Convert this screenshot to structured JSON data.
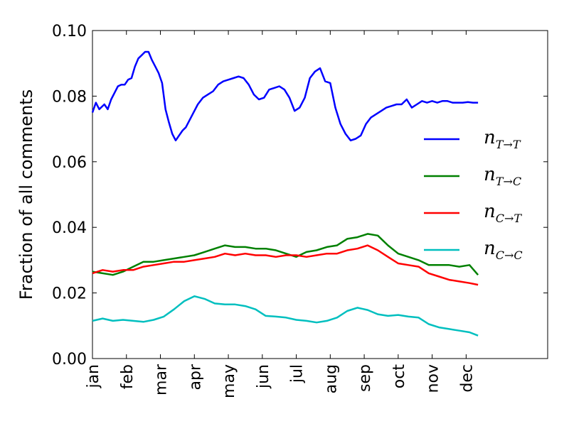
{
  "chart_data": {
    "type": "line",
    "ylabel": "Fraction of all comments",
    "xlabel": "",
    "x_ticks": [
      "jan",
      "feb",
      "mar",
      "apr",
      "may",
      "jun",
      "jul",
      "aug",
      "sep",
      "oct",
      "nov",
      "dec"
    ],
    "xlim": [
      0,
      13.4
    ],
    "ylim": [
      0.0,
      0.1
    ],
    "y_ticks": [
      "0.00",
      "0.02",
      "0.04",
      "0.06",
      "0.08",
      "0.10"
    ],
    "y_tick_values": [
      0.0,
      0.02,
      0.04,
      0.06,
      0.08,
      0.1
    ],
    "grid": false,
    "legend_position": "right",
    "series": [
      {
        "name": "n_{T→T}",
        "label_main": "n",
        "label_sub": "T→T",
        "color": "#0000ff",
        "x": [
          0,
          0.1,
          0.2,
          0.25,
          0.35,
          0.45,
          0.55,
          0.65,
          0.75,
          0.85,
          0.95,
          1.05,
          1.15,
          1.25,
          1.35,
          1.45,
          1.55,
          1.65,
          1.75,
          1.85,
          1.95,
          2.05,
          2.15,
          2.25,
          2.35,
          2.45,
          2.55,
          2.65,
          2.75,
          2.85,
          2.95,
          3.1,
          3.25,
          3.4,
          3.55,
          3.7,
          3.85,
          4.0,
          4.15,
          4.3,
          4.45,
          4.6,
          4.75,
          4.9,
          5.05,
          5.2,
          5.35,
          5.5,
          5.65,
          5.8,
          5.95,
          6.1,
          6.25,
          6.4,
          6.55,
          6.7,
          6.85,
          7.0,
          7.15,
          7.3,
          7.45,
          7.6,
          7.75,
          7.9,
          8.05,
          8.2,
          8.35,
          8.5,
          8.65,
          8.8,
          8.95,
          9.1,
          9.25,
          9.4,
          9.55,
          9.7,
          9.85,
          10.0,
          10.15,
          10.3,
          10.45,
          10.6,
          10.75,
          10.9,
          11.05,
          11.2,
          11.35
        ],
        "y": [
          0.075,
          0.078,
          0.076,
          0.0765,
          0.0775,
          0.076,
          0.079,
          0.081,
          0.083,
          0.0835,
          0.0835,
          0.085,
          0.0855,
          0.089,
          0.0915,
          0.0925,
          0.0935,
          0.0935,
          0.091,
          0.089,
          0.087,
          0.084,
          0.076,
          0.072,
          0.0685,
          0.0665,
          0.068,
          0.0695,
          0.0705,
          0.0725,
          0.0745,
          0.0775,
          0.0795,
          0.0805,
          0.0815,
          0.0835,
          0.0845,
          0.085,
          0.0855,
          0.086,
          0.0855,
          0.0835,
          0.0805,
          0.079,
          0.0795,
          0.082,
          0.0825,
          0.083,
          0.082,
          0.0795,
          0.0755,
          0.0765,
          0.0795,
          0.0855,
          0.0875,
          0.0885,
          0.0845,
          0.084,
          0.0765,
          0.0715,
          0.0685,
          0.0665,
          0.067,
          0.068,
          0.0715,
          0.0735,
          0.0745,
          0.0755,
          0.0765,
          0.077,
          0.0775,
          0.0775,
          0.079,
          0.0765,
          0.0775,
          0.0785,
          0.078,
          0.0785,
          0.078,
          0.0785,
          0.0785,
          0.078,
          0.078,
          0.078,
          0.0782,
          0.078,
          0.078
        ]
      },
      {
        "name": "n_{T→C}",
        "label_main": "n",
        "label_sub": "T→C",
        "color": "#008000",
        "x": [
          0,
          0.3,
          0.6,
          0.9,
          1.2,
          1.5,
          1.8,
          2.1,
          2.4,
          2.7,
          3.0,
          3.3,
          3.6,
          3.9,
          4.2,
          4.5,
          4.8,
          5.1,
          5.4,
          5.7,
          6.0,
          6.3,
          6.6,
          6.9,
          7.2,
          7.5,
          7.8,
          8.1,
          8.4,
          8.7,
          9.0,
          9.3,
          9.6,
          9.9,
          10.2,
          10.5,
          10.8,
          11.1,
          11.35
        ],
        "y": [
          0.0265,
          0.026,
          0.0255,
          0.0265,
          0.028,
          0.0295,
          0.0295,
          0.03,
          0.0305,
          0.031,
          0.0315,
          0.0325,
          0.0335,
          0.0345,
          0.034,
          0.034,
          0.0335,
          0.0335,
          0.033,
          0.032,
          0.031,
          0.0325,
          0.033,
          0.034,
          0.0345,
          0.0365,
          0.037,
          0.038,
          0.0375,
          0.0345,
          0.032,
          0.031,
          0.03,
          0.0285,
          0.0285,
          0.0285,
          0.028,
          0.0285,
          0.0255
        ]
      },
      {
        "name": "n_{C→T}",
        "label_main": "n",
        "label_sub": "C→T",
        "color": "#ff0000",
        "x": [
          0,
          0.3,
          0.6,
          0.9,
          1.2,
          1.5,
          1.8,
          2.1,
          2.4,
          2.7,
          3.0,
          3.3,
          3.6,
          3.9,
          4.2,
          4.5,
          4.8,
          5.1,
          5.4,
          5.7,
          6.0,
          6.3,
          6.6,
          6.9,
          7.2,
          7.5,
          7.8,
          8.1,
          8.4,
          8.7,
          9.0,
          9.3,
          9.6,
          9.9,
          10.2,
          10.5,
          10.8,
          11.1,
          11.35
        ],
        "y": [
          0.026,
          0.027,
          0.0265,
          0.027,
          0.027,
          0.028,
          0.0285,
          0.029,
          0.0295,
          0.0295,
          0.03,
          0.0305,
          0.031,
          0.032,
          0.0315,
          0.032,
          0.0315,
          0.0315,
          0.031,
          0.0315,
          0.0315,
          0.031,
          0.0315,
          0.032,
          0.032,
          0.033,
          0.0335,
          0.0345,
          0.033,
          0.031,
          0.029,
          0.0285,
          0.028,
          0.026,
          0.025,
          0.024,
          0.0235,
          0.023,
          0.0225
        ]
      },
      {
        "name": "n_{C→C}",
        "label_main": "n",
        "label_sub": "C→C",
        "color": "#00bfbf",
        "x": [
          0,
          0.3,
          0.6,
          0.9,
          1.2,
          1.5,
          1.8,
          2.1,
          2.4,
          2.7,
          3.0,
          3.3,
          3.6,
          3.9,
          4.2,
          4.5,
          4.8,
          5.1,
          5.4,
          5.7,
          6.0,
          6.3,
          6.6,
          6.9,
          7.2,
          7.5,
          7.8,
          8.1,
          8.4,
          8.7,
          9.0,
          9.3,
          9.6,
          9.9,
          10.2,
          10.5,
          10.8,
          11.1,
          11.35
        ],
        "y": [
          0.0115,
          0.0122,
          0.0115,
          0.0118,
          0.0115,
          0.0112,
          0.0118,
          0.0128,
          0.015,
          0.0175,
          0.019,
          0.0182,
          0.0168,
          0.0165,
          0.0165,
          0.016,
          0.015,
          0.013,
          0.0128,
          0.0125,
          0.0118,
          0.0115,
          0.011,
          0.0115,
          0.0125,
          0.0145,
          0.0155,
          0.0148,
          0.0135,
          0.013,
          0.0133,
          0.0128,
          0.0125,
          0.0105,
          0.0095,
          0.009,
          0.0085,
          0.008,
          0.007
        ]
      }
    ]
  }
}
